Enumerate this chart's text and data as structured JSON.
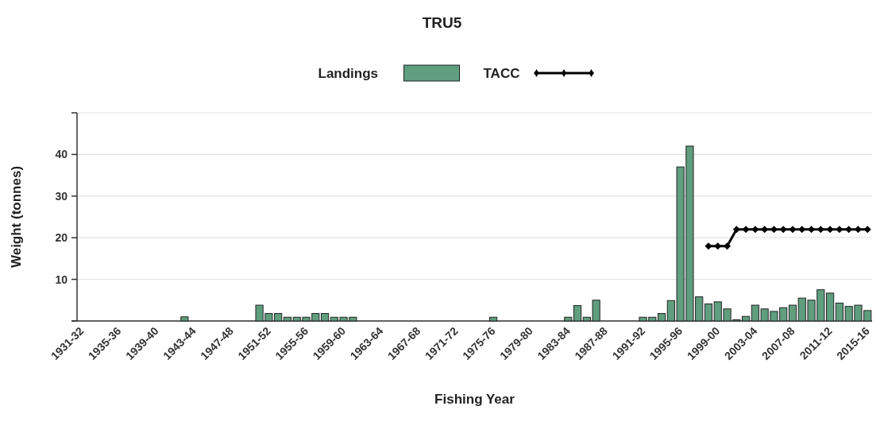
{
  "chart_data": {
    "type": "bar",
    "title": "TRU5",
    "xlabel": "Fishing Year",
    "ylabel": "Weight (tonnes)",
    "categories": [
      "1931-32",
      null,
      null,
      null,
      "1935-36",
      null,
      null,
      null,
      "1939-40",
      null,
      null,
      null,
      "1943-44",
      null,
      null,
      null,
      "1947-48",
      null,
      null,
      null,
      "1951-52",
      null,
      null,
      null,
      "1955-56",
      null,
      null,
      null,
      "1959-60",
      null,
      null,
      null,
      "1963-64",
      null,
      null,
      null,
      "1967-68",
      null,
      null,
      null,
      "1971-72",
      null,
      null,
      null,
      "1975-76",
      null,
      null,
      null,
      "1979-80",
      null,
      null,
      null,
      "1983-84",
      null,
      null,
      null,
      "1987-88",
      null,
      null,
      null,
      "1991-92",
      null,
      null,
      null,
      "1995-96",
      null,
      null,
      null,
      "1999-00",
      null,
      null,
      null,
      "2003-04",
      null,
      null,
      null,
      "2007-08",
      null,
      null,
      null,
      "2011-12",
      null,
      null,
      null,
      "2015-16"
    ],
    "series": [
      {
        "name": "Landings",
        "color": "#5f9e7f",
        "values": [
          null,
          null,
          null,
          null,
          null,
          null,
          null,
          null,
          null,
          null,
          null,
          1,
          null,
          null,
          null,
          null,
          null,
          null,
          null,
          3.8,
          1.8,
          1.8,
          0.9,
          0.9,
          0.9,
          1.8,
          1.8,
          0.9,
          0.9,
          0.9,
          null,
          null,
          null,
          null,
          null,
          null,
          null,
          null,
          null,
          null,
          null,
          null,
          null,
          null,
          0.9,
          null,
          null,
          null,
          null,
          null,
          null,
          null,
          0.9,
          3.7,
          0.9,
          5,
          null,
          null,
          null,
          null,
          0.9,
          0.9,
          1.8,
          4.9,
          37,
          42,
          5.8,
          4.1,
          4.6,
          2.9,
          0.3,
          1.1,
          3.8,
          2.9,
          2.3,
          3.2,
          3.8,
          5.5,
          5,
          7.5,
          6.7,
          4.3,
          3.5,
          3.8,
          2.5
        ]
      },
      {
        "name": "TACC",
        "type": "line",
        "color": "#000000",
        "marker": "diamond",
        "values": [
          null,
          null,
          null,
          null,
          null,
          null,
          null,
          null,
          null,
          null,
          null,
          null,
          null,
          null,
          null,
          null,
          null,
          null,
          null,
          null,
          null,
          null,
          null,
          null,
          null,
          null,
          null,
          null,
          null,
          null,
          null,
          null,
          null,
          null,
          null,
          null,
          null,
          null,
          null,
          null,
          null,
          null,
          null,
          null,
          null,
          null,
          null,
          null,
          null,
          null,
          null,
          null,
          null,
          null,
          null,
          null,
          null,
          null,
          null,
          null,
          null,
          null,
          null,
          null,
          null,
          null,
          null,
          18,
          18,
          18,
          22,
          22,
          22,
          22,
          22,
          22,
          22,
          22,
          22,
          22,
          22,
          22,
          22,
          22,
          22
        ]
      }
    ],
    "ylim": [
      0,
      50
    ],
    "yticks": [
      {
        "value": 0,
        "label": null
      },
      10,
      20,
      30,
      40,
      {
        "value": 50,
        "label": null
      }
    ],
    "grid": "y",
    "legend": "top"
  }
}
